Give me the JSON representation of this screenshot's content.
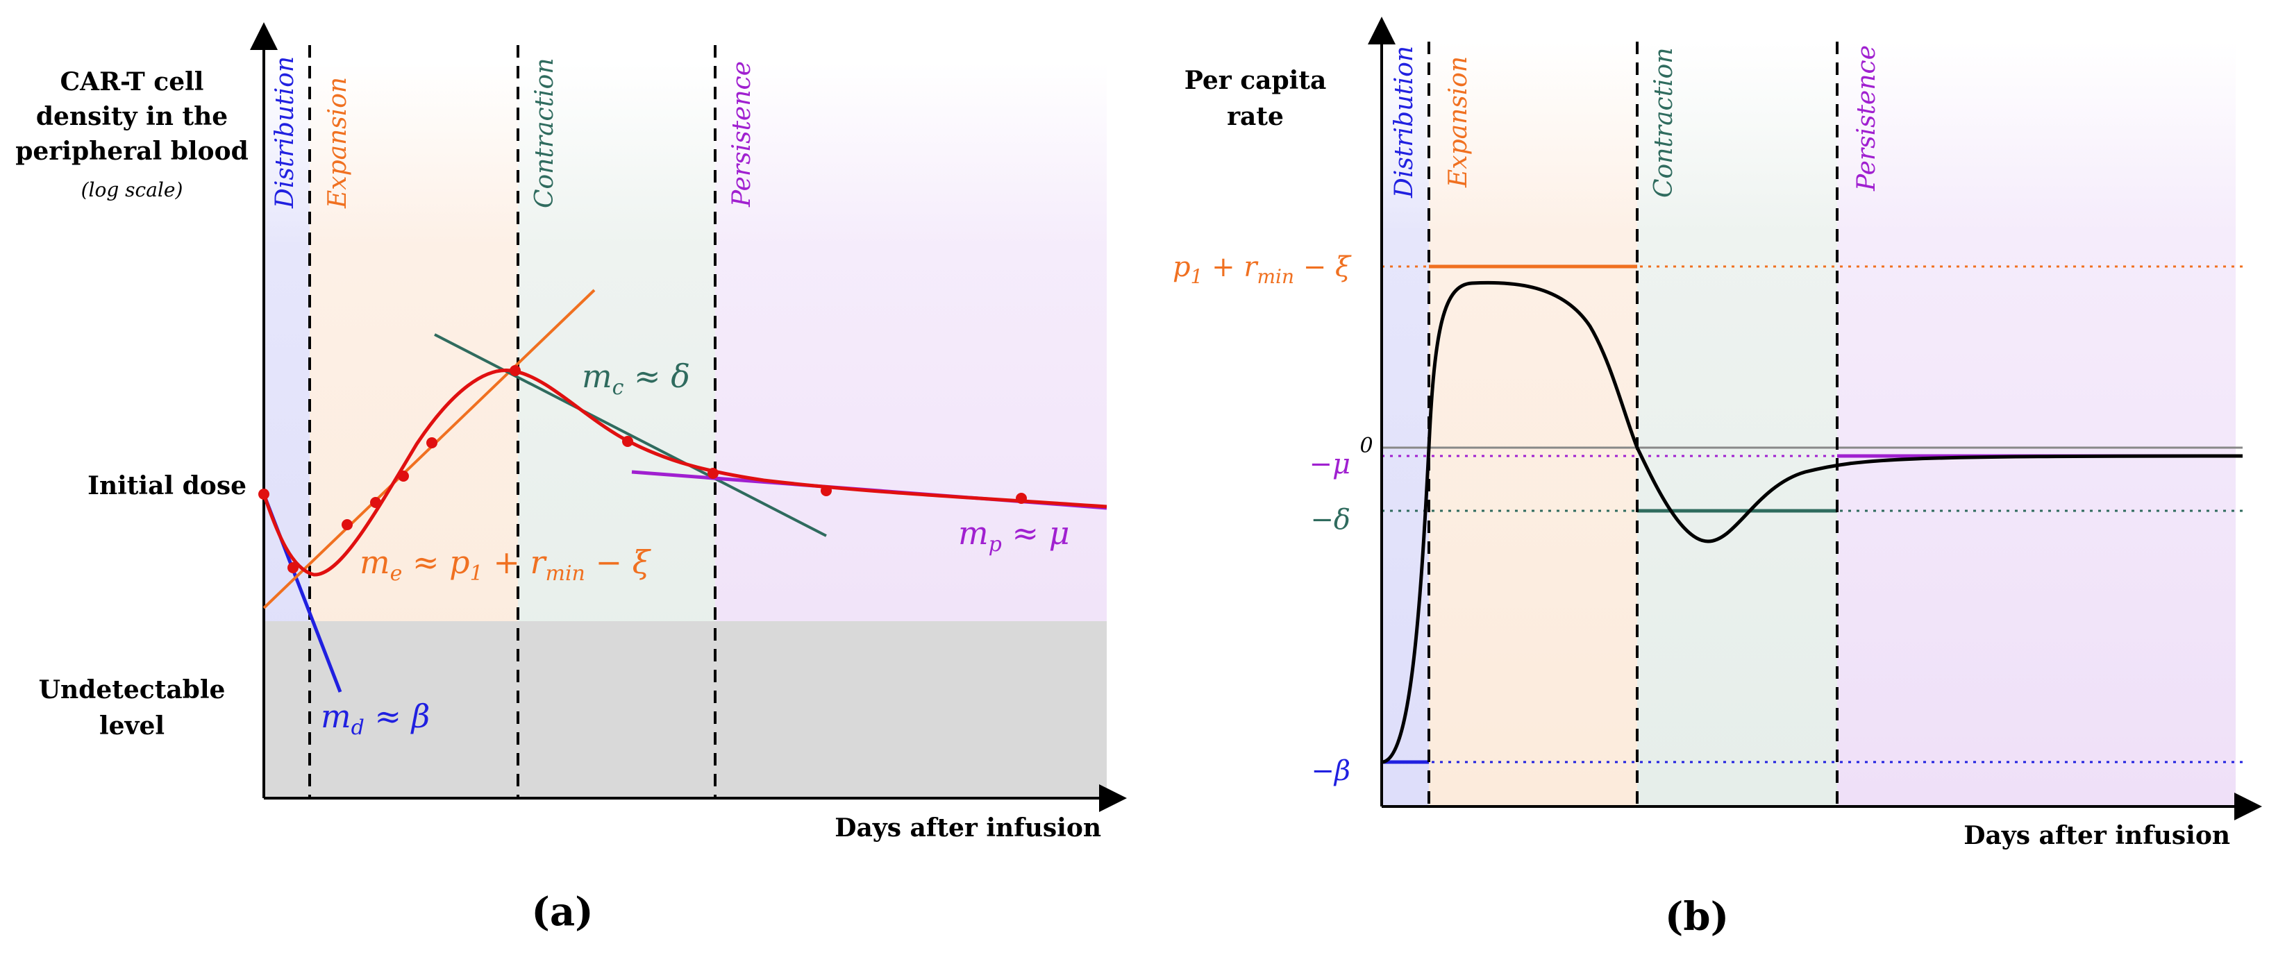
{
  "colors": {
    "distribution": "#2020e0",
    "expansion": "#f07020",
    "contraction": "#2f6b5e",
    "persistence": "#a020d0",
    "fit_curve": "#e01010",
    "initial_dose": "#cc0000",
    "undetectable_text": "#999999",
    "undetectable_band": "#d9d9d9"
  },
  "phases": {
    "distribution": "Distribution",
    "expansion": "Expansion",
    "contraction": "Contraction",
    "persistence": "Persistence"
  },
  "panel_a": {
    "y_label_lines": [
      "CAR-T cell",
      "density in the",
      "peripheral blood"
    ],
    "y_label_scale": "(log scale)",
    "x_label": "Days after infusion",
    "initial_dose": "Initial dose",
    "undetectable_lines": [
      "Undetectable",
      "level"
    ],
    "slope_labels": {
      "md": {
        "base": "m",
        "sub": "d",
        "rest": " ≈ β"
      },
      "me": {
        "base": "m",
        "sub": "e",
        "rest": " ≈ p",
        "sub2": "1",
        "rest2": " + r",
        "sub3": "min",
        "rest3": " − ξ"
      },
      "mc": {
        "base": "m",
        "sub": "c",
        "rest": " ≈ δ"
      },
      "mp": {
        "base": "m",
        "sub": "p",
        "rest": " ≈ μ"
      }
    },
    "caption": "(a)"
  },
  "panel_b": {
    "y_label_lines": [
      "Per capita",
      "rate"
    ],
    "x_label": "Days after infusion",
    "levels": {
      "top": {
        "p": "p",
        "sub1": "1",
        "r": " + r",
        "sub2": "min",
        "xi": " − ξ"
      },
      "zero": "0",
      "mu": "−μ",
      "delta": "−δ",
      "beta": "−β"
    },
    "caption": "(b)"
  }
}
